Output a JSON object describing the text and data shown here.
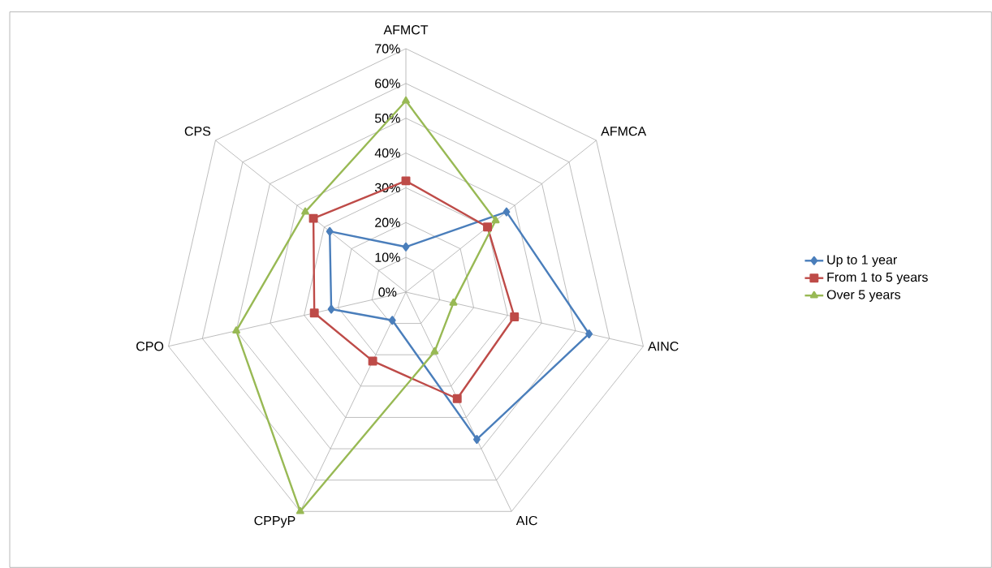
{
  "chart_data": {
    "type": "radar",
    "categories": [
      "AFMCT",
      "AFMCA",
      "AINC",
      "AIC",
      "CPPyP",
      "CPO",
      "CPS"
    ],
    "series": [
      {
        "name": "Up to 1 year",
        "color": "#4a7ebb",
        "marker": "diamond",
        "values": [
          13,
          37,
          54,
          47,
          9,
          22,
          28
        ]
      },
      {
        "name": "From 1 to 5 years",
        "color": "#be4b48",
        "marker": "square",
        "values": [
          32,
          30,
          32,
          34,
          22,
          27,
          34
        ]
      },
      {
        "name": "Over 5 years",
        "color": "#98b954",
        "marker": "triangle",
        "values": [
          55,
          33,
          14,
          19,
          70,
          50,
          37
        ]
      }
    ],
    "ylim": [
      0,
      70
    ],
    "yticks": [
      {
        "value": 0,
        "label": "0%"
      },
      {
        "value": 10,
        "label": "10%"
      },
      {
        "value": 20,
        "label": "20%"
      },
      {
        "value": 30,
        "label": "30%"
      },
      {
        "value": 40,
        "label": "40%"
      },
      {
        "value": 50,
        "label": "50%"
      },
      {
        "value": 60,
        "label": "60%"
      },
      {
        "value": 70,
        "label": "70%"
      }
    ],
    "grid": true,
    "legend": "right"
  }
}
